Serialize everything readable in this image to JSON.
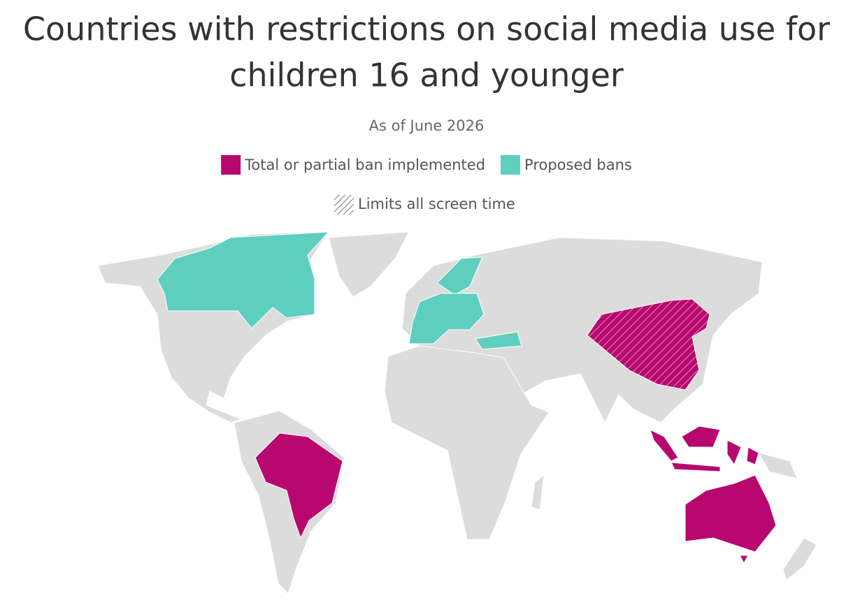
{
  "header": {
    "title_line1": "Countries with restrictions on social media use for",
    "title_line2": "children 16 and younger",
    "subtitle": "As of June 2026"
  },
  "legend": {
    "items": [
      {
        "label": "Total or partial ban implemented",
        "color": "#b8076e"
      },
      {
        "label": "Proposed bans",
        "color": "#5ecfbf"
      }
    ],
    "hatch_label": "Limits all screen time"
  }
}
